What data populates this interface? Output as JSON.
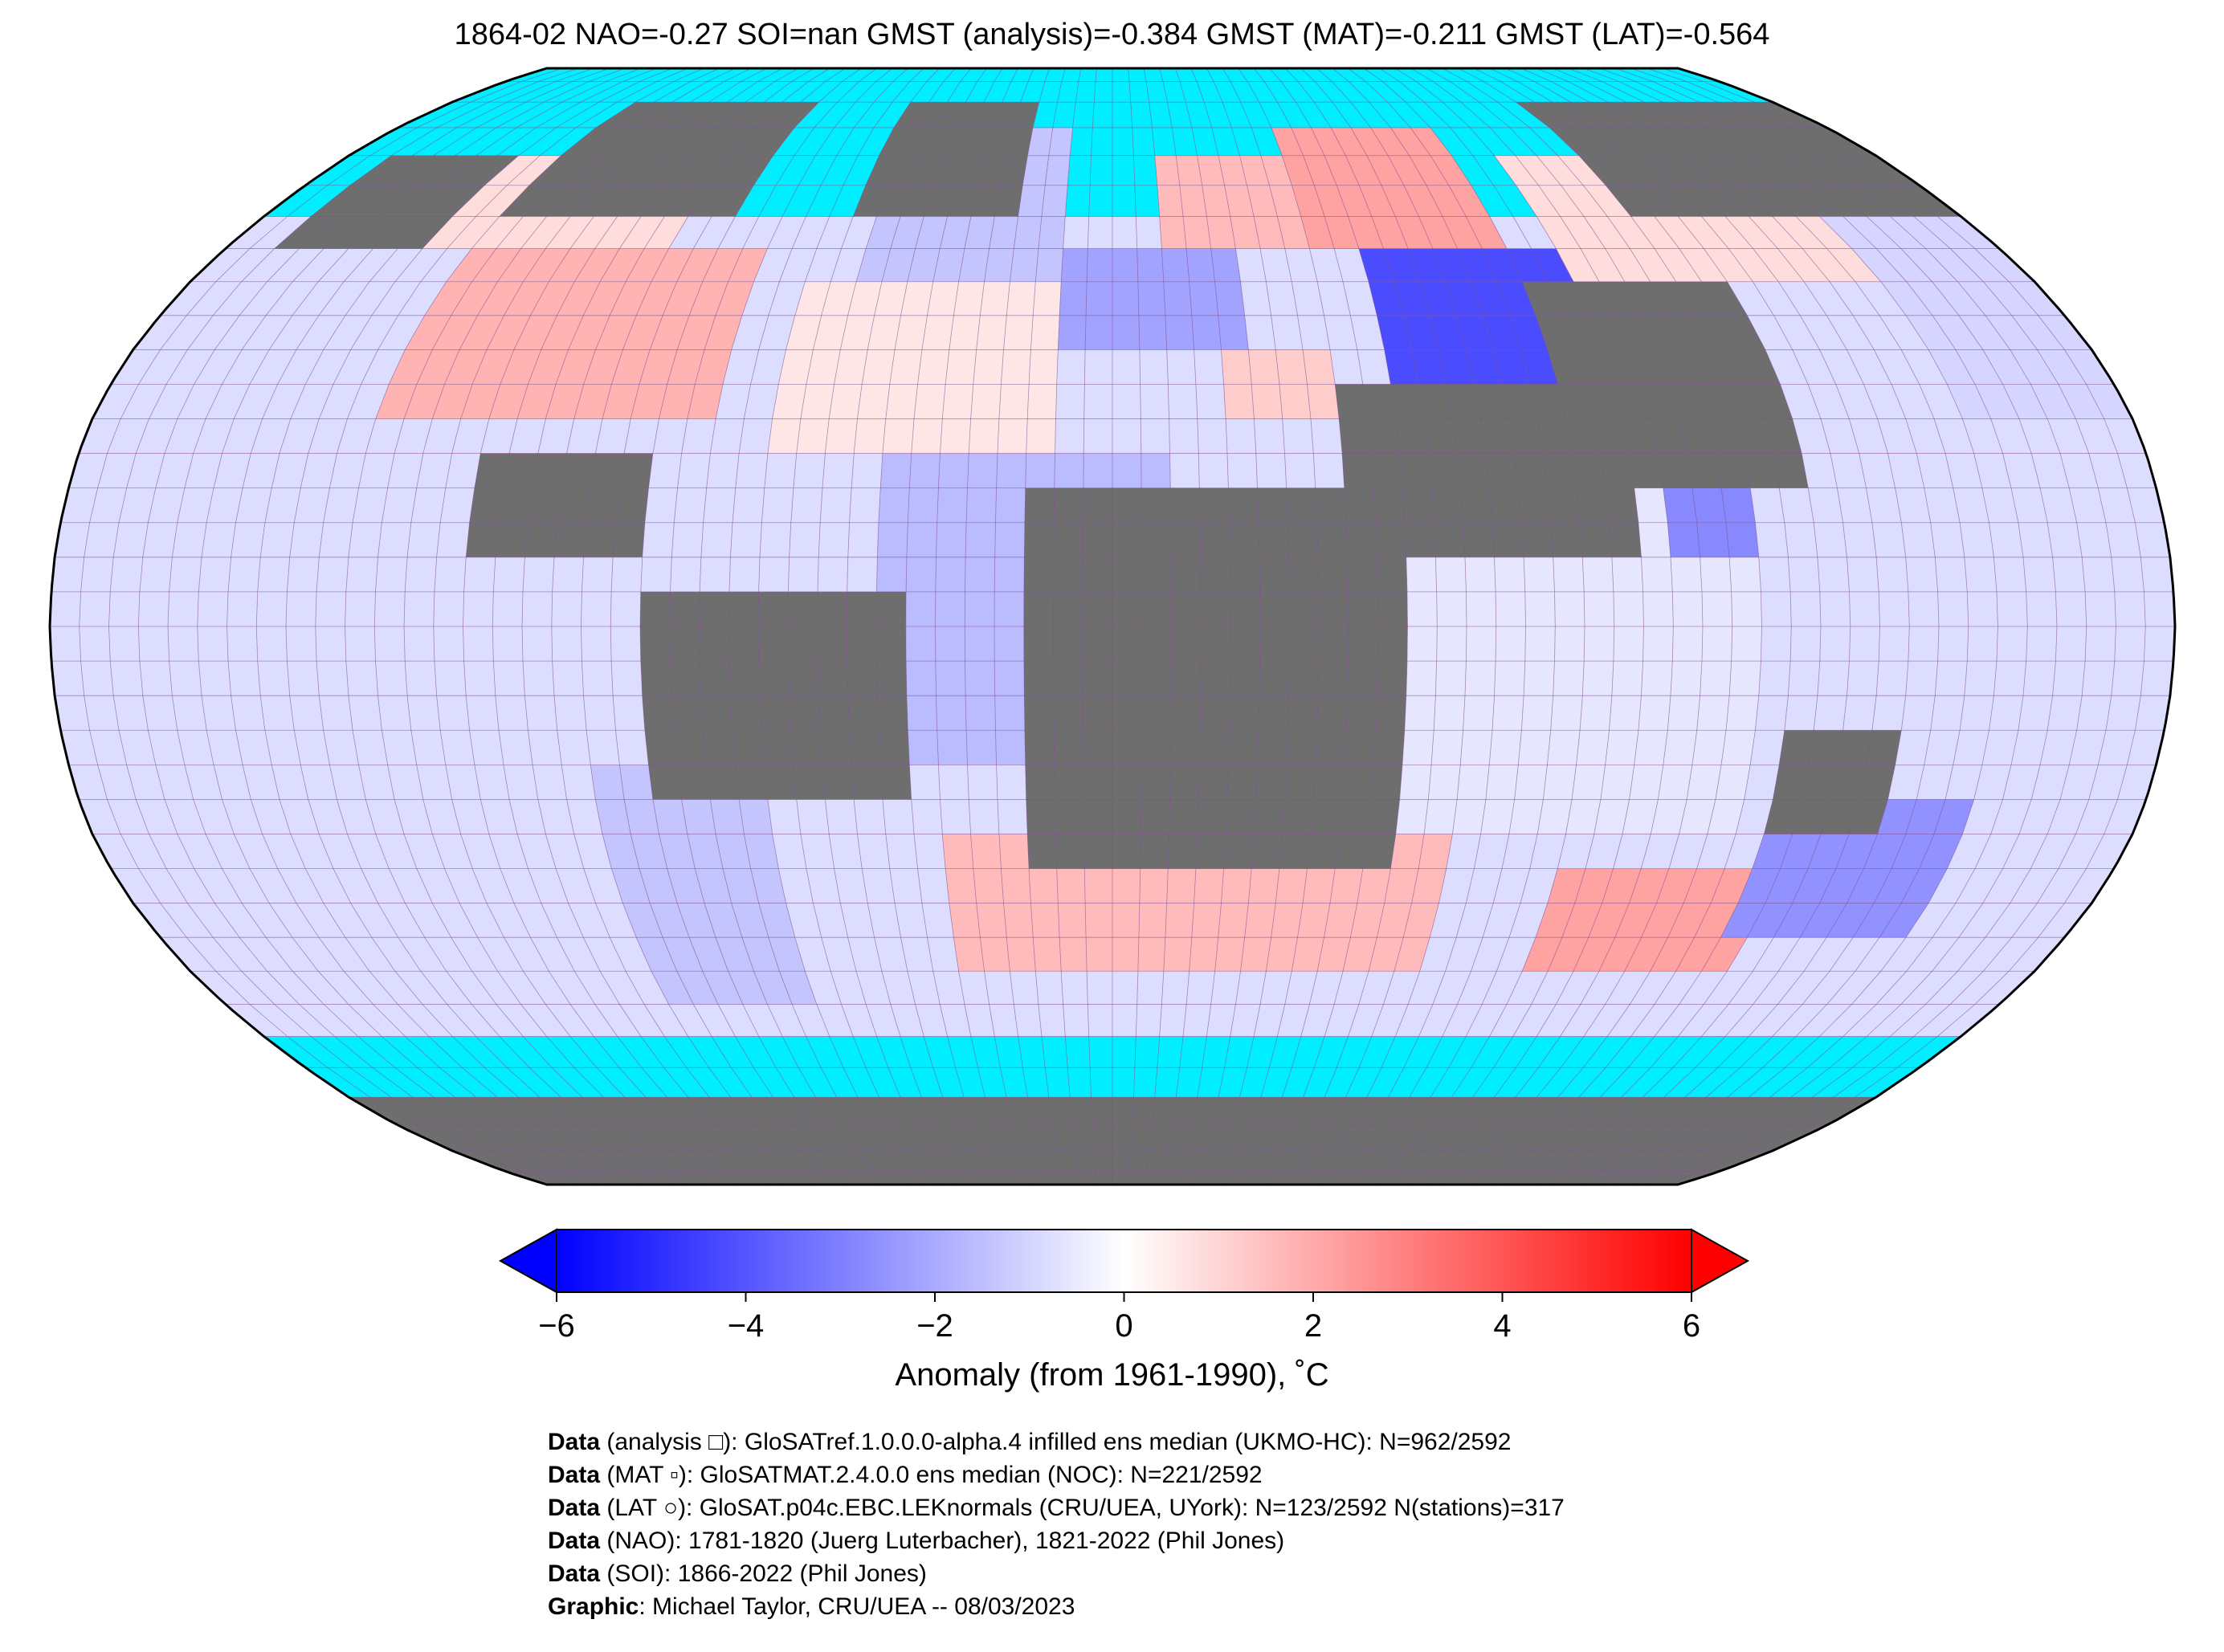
{
  "title": "1864-02 NAO=-0.27 SOI=nan GMST (analysis)=-0.384 GMST (MAT)=-0.211 GMST (LAT)=-0.564",
  "colors": {
    "ocean": "#00EEFF",
    "land_missing": "#6E6E6E",
    "grid": "#8A4A8A",
    "warm": "#FF0000",
    "cold": "#0000FF",
    "neutral": "#FFFFFF"
  },
  "colorbar": {
    "ticks": [
      "−6",
      "−4",
      "−2",
      "0",
      "2",
      "4",
      "6"
    ],
    "tick_values": [
      -6,
      -4,
      -2,
      0,
      2,
      4,
      6
    ],
    "vmin": -6,
    "vmax": 6,
    "label": "Anomaly (from 1961-1990), ˚C",
    "extend": "both",
    "colormap": "bwr"
  },
  "credits": [
    {
      "bold": "Data",
      "text": " (analysis □): GloSATref.1.0.0.0-alpha.4 infilled ens median (UKMO-HC): N=962/2592"
    },
    {
      "bold": "Data",
      "text": " (MAT ▫): GloSATMAT.2.4.0.0 ens median (NOC): N=221/2592"
    },
    {
      "bold": "Data",
      "text": " (LAT ○): GloSAT.p04c.EBC.LEKnormals (CRU/UEA, UYork): N=123/2592 N(stations)=317"
    },
    {
      "bold": "Data",
      "text": " (NAO): 1781-1820 (Juerg Luterbacher), 1821-2022 (Phil Jones)"
    },
    {
      "bold": "Data",
      "text": " (SOI): 1866-2022 (Phil Jones)"
    },
    {
      "bold": "Graphic",
      "text": ": Michael Taylor, CRU/UEA -- 08/03/2023"
    }
  ],
  "map": {
    "projection": "Robinson",
    "grid_resolution_deg": 5,
    "anomaly_regions": [
      {
        "name": "north-america",
        "lon": [
          -130,
          -70
        ],
        "lat": [
          30,
          55
        ],
        "anomaly": 1.8
      },
      {
        "name": "canada-arctic",
        "lon": [
          -140,
          -90
        ],
        "lat": [
          55,
          70
        ],
        "anomaly": 0.8
      },
      {
        "name": "north-atlantic",
        "lon": [
          -60,
          -10
        ],
        "lat": [
          25,
          50
        ],
        "anomaly": 0.6
      },
      {
        "name": "north-atlantic-high",
        "lon": [
          -50,
          -10
        ],
        "lat": [
          50,
          75
        ],
        "anomaly": -1.4
      },
      {
        "name": "europe",
        "lon": [
          -10,
          25
        ],
        "lat": [
          40,
          55
        ],
        "anomaly": -2.2
      },
      {
        "name": "scandinavia",
        "lon": [
          10,
          40
        ],
        "lat": [
          55,
          72
        ],
        "anomaly": 1.6
      },
      {
        "name": "east-europe-russia",
        "lon": [
          40,
          80
        ],
        "lat": [
          55,
          75
        ],
        "anomaly": 2.2
      },
      {
        "name": "central-asia",
        "lon": [
          50,
          90
        ],
        "lat": [
          35,
          55
        ],
        "anomaly": -4.2
      },
      {
        "name": "siberia-east",
        "lon": [
          90,
          150
        ],
        "lat": [
          50,
          70
        ],
        "anomaly": 0.8
      },
      {
        "name": "eastern-mediterranean",
        "lon": [
          20,
          40
        ],
        "lat": [
          30,
          42
        ],
        "anomaly": 1.2
      },
      {
        "name": "tropical-atlantic",
        "lon": [
          -40,
          10
        ],
        "lat": [
          -20,
          25
        ],
        "anomaly": -1.6
      },
      {
        "name": "south-atlantic-warm",
        "lon": [
          -30,
          60
        ],
        "lat": [
          -50,
          -30
        ],
        "anomaly": 1.6
      },
      {
        "name": "indian-ocean",
        "lon": [
          50,
          110
        ],
        "lat": [
          -30,
          20
        ],
        "anomaly": -0.6
      },
      {
        "name": "indochina",
        "lon": [
          95,
          110
        ],
        "lat": [
          10,
          25
        ],
        "anomaly": -2.8
      },
      {
        "name": "south-indian-warm",
        "lon": [
          80,
          120
        ],
        "lat": [
          -50,
          -35
        ],
        "anomaly": 2.2
      },
      {
        "name": "australia-south",
        "lon": [
          115,
          150
        ],
        "lat": [
          -45,
          -25
        ],
        "anomaly": -2.6
      },
      {
        "name": "south-pacific",
        "lon": [
          -90,
          -60
        ],
        "lat": [
          -55,
          -20
        ],
        "anomaly": -1.4
      },
      {
        "name": "north-pacific",
        "lon": [
          150,
          180
        ],
        "lat": [
          30,
          60
        ],
        "anomaly": -1.0
      }
    ],
    "no_data_regions": [
      {
        "name": "alaska",
        "lon": [
          -170,
          -140
        ],
        "lat": [
          55,
          72
        ]
      },
      {
        "name": "north-canada",
        "lon": [
          -130,
          -80
        ],
        "lat": [
          60,
          80
        ]
      },
      {
        "name": "greenland",
        "lon": [
          -55,
          -20
        ],
        "lat": [
          60,
          82
        ]
      },
      {
        "name": "central-america",
        "lon": [
          -110,
          -80
        ],
        "lat": [
          10,
          25
        ]
      },
      {
        "name": "south-america",
        "lon": [
          -80,
          -35
        ],
        "lat": [
          -25,
          5
        ]
      },
      {
        "name": "africa",
        "lon": [
          -15,
          50
        ],
        "lat": [
          -35,
          20
        ]
      },
      {
        "name": "arabia-india",
        "lon": [
          40,
          90
        ],
        "lat": [
          10,
          35
        ]
      },
      {
        "name": "china",
        "lon": [
          80,
          120
        ],
        "lat": [
          20,
          50
        ]
      },
      {
        "name": "east-siberia",
        "lon": [
          110,
          180
        ],
        "lat": [
          60,
          78
        ]
      },
      {
        "name": "australia-west",
        "lon": [
          115,
          135
        ],
        "lat": [
          -30,
          -15
        ]
      },
      {
        "name": "antarctica",
        "lon": [
          -180,
          180
        ],
        "lat": [
          -90,
          -70
        ]
      }
    ]
  }
}
